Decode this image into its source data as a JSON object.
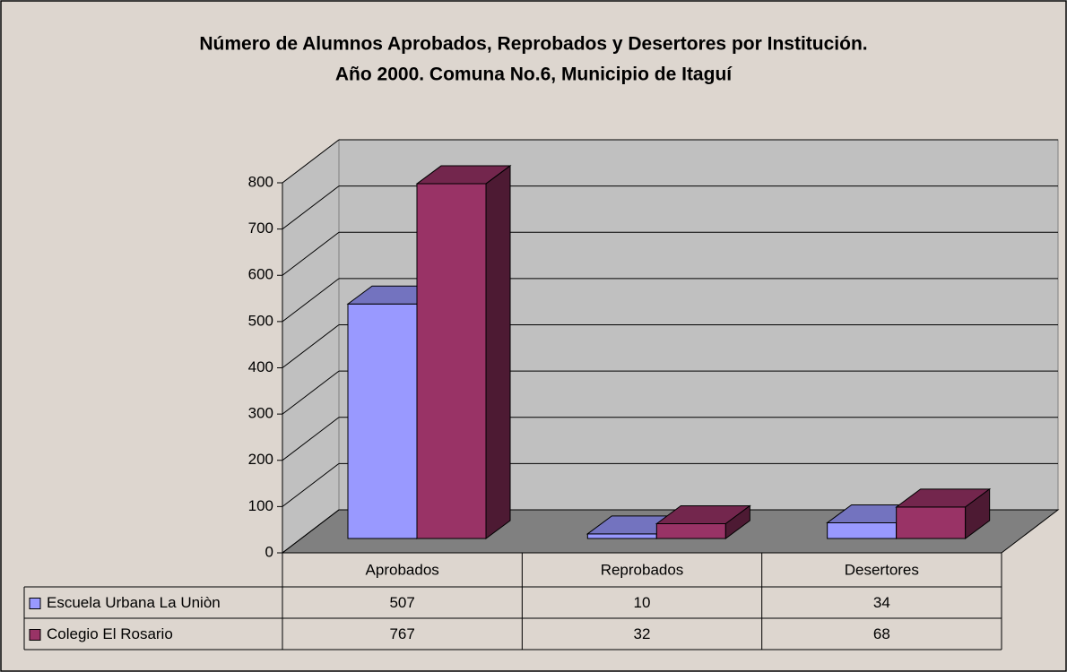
{
  "chart_data": {
    "type": "bar3d",
    "title": [
      "Número de Alumnos Aprobados, Reprobados y Desertores por Institución.",
      "Año 2000. Comuna No.6, Municipio de Itaguí"
    ],
    "categories": [
      "Aprobados",
      "Reprobados",
      "Desertores"
    ],
    "series": [
      {
        "name": "Escuela Urbana La Uniòn",
        "color": "#9999ff",
        "values": [
          507,
          10,
          34
        ]
      },
      {
        "name": "Colegio El Rosario",
        "color": "#993366",
        "values": [
          767,
          32,
          68
        ]
      }
    ],
    "ylim": [
      0,
      800
    ],
    "yticks": [
      0,
      100,
      200,
      300,
      400,
      500,
      600,
      700,
      800
    ],
    "grid": true,
    "data_table": true
  }
}
